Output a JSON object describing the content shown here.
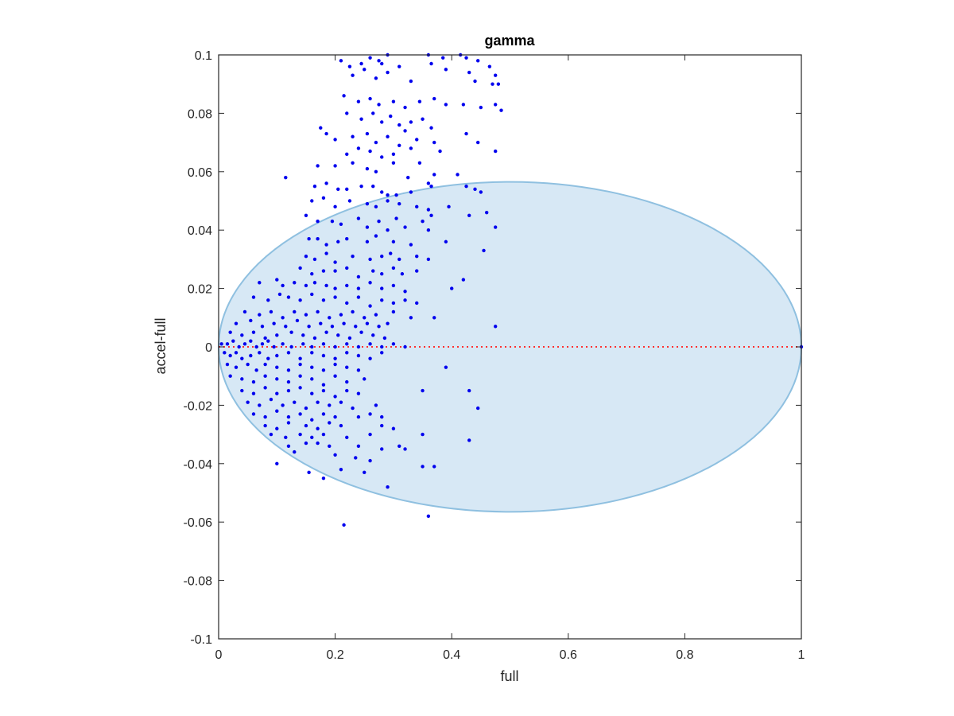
{
  "chart_data": {
    "type": "scatter",
    "title": "gamma",
    "xlabel": "full",
    "ylabel": "accel-full",
    "xlim": [
      0,
      1
    ],
    "ylim": [
      -0.1,
      0.1
    ],
    "xticks": [
      0,
      0.2,
      0.4,
      0.6,
      0.8,
      1
    ],
    "xtick_labels": [
      "0",
      "0.2",
      "0.4",
      "0.6",
      "0.8",
      "1"
    ],
    "yticks": [
      -0.1,
      -0.08,
      -0.06,
      -0.04,
      -0.02,
      0,
      0.02,
      0.04,
      0.06,
      0.08,
      0.1
    ],
    "ytick_labels": [
      "-0.1",
      "-0.08",
      "-0.06",
      "-0.04",
      "-0.02",
      "0",
      "0.02",
      "0.04",
      "0.06",
      "0.08",
      "0.1"
    ],
    "grid": false,
    "colors": {
      "points": "#0000ee",
      "zero_line": "#ff3030",
      "ellipse_fill": "#d7e8f5",
      "ellipse_stroke": "#8fc0e0",
      "axes": "#262626"
    },
    "reference_line": {
      "y": 0,
      "style": "dotted"
    },
    "ellipse": {
      "cx": 0.5,
      "cy": 0,
      "rx": 0.5,
      "ry": 0.0565
    },
    "points": [
      [
        0.21,
        0.098
      ],
      [
        0.225,
        0.096
      ],
      [
        0.245,
        0.097
      ],
      [
        0.26,
        0.099
      ],
      [
        0.275,
        0.098
      ],
      [
        0.29,
        0.1
      ],
      [
        0.28,
        0.097
      ],
      [
        0.36,
        0.1
      ],
      [
        0.385,
        0.099
      ],
      [
        0.415,
        0.1
      ],
      [
        0.425,
        0.099
      ],
      [
        0.445,
        0.098
      ],
      [
        0.23,
        0.093
      ],
      [
        0.25,
        0.095
      ],
      [
        0.27,
        0.092
      ],
      [
        0.29,
        0.094
      ],
      [
        0.31,
        0.096
      ],
      [
        0.33,
        0.091
      ],
      [
        0.365,
        0.097
      ],
      [
        0.39,
        0.095
      ],
      [
        0.43,
        0.094
      ],
      [
        0.465,
        0.096
      ],
      [
        0.475,
        0.093
      ],
      [
        0.48,
        0.09
      ],
      [
        0.47,
        0.09
      ],
      [
        0.44,
        0.091
      ],
      [
        0.215,
        0.086
      ],
      [
        0.24,
        0.084
      ],
      [
        0.26,
        0.085
      ],
      [
        0.275,
        0.083
      ],
      [
        0.3,
        0.084
      ],
      [
        0.32,
        0.082
      ],
      [
        0.345,
        0.084
      ],
      [
        0.37,
        0.085
      ],
      [
        0.39,
        0.083
      ],
      [
        0.42,
        0.083
      ],
      [
        0.45,
        0.082
      ],
      [
        0.475,
        0.083
      ],
      [
        0.485,
        0.081
      ],
      [
        0.22,
        0.08
      ],
      [
        0.245,
        0.078
      ],
      [
        0.265,
        0.08
      ],
      [
        0.28,
        0.077
      ],
      [
        0.295,
        0.079
      ],
      [
        0.31,
        0.076
      ],
      [
        0.33,
        0.077
      ],
      [
        0.35,
        0.078
      ],
      [
        0.365,
        0.075
      ],
      [
        0.175,
        0.075
      ],
      [
        0.185,
        0.073
      ],
      [
        0.2,
        0.071
      ],
      [
        0.23,
        0.072
      ],
      [
        0.255,
        0.073
      ],
      [
        0.27,
        0.07
      ],
      [
        0.29,
        0.072
      ],
      [
        0.31,
        0.069
      ],
      [
        0.32,
        0.074
      ],
      [
        0.34,
        0.071
      ],
      [
        0.37,
        0.07
      ],
      [
        0.425,
        0.073
      ],
      [
        0.445,
        0.07
      ],
      [
        0.22,
        0.066
      ],
      [
        0.24,
        0.068
      ],
      [
        0.26,
        0.067
      ],
      [
        0.28,
        0.065
      ],
      [
        0.3,
        0.066
      ],
      [
        0.33,
        0.068
      ],
      [
        0.345,
        0.063
      ],
      [
        0.38,
        0.067
      ],
      [
        0.475,
        0.067
      ],
      [
        0.115,
        0.058
      ],
      [
        0.17,
        0.062
      ],
      [
        0.2,
        0.062
      ],
      [
        0.23,
        0.063
      ],
      [
        0.255,
        0.061
      ],
      [
        0.27,
        0.06
      ],
      [
        0.3,
        0.063
      ],
      [
        0.325,
        0.058
      ],
      [
        0.37,
        0.059
      ],
      [
        0.41,
        0.059
      ],
      [
        0.165,
        0.055
      ],
      [
        0.185,
        0.056
      ],
      [
        0.205,
        0.054
      ],
      [
        0.22,
        0.054
      ],
      [
        0.245,
        0.055
      ],
      [
        0.265,
        0.055
      ],
      [
        0.28,
        0.053
      ],
      [
        0.29,
        0.052
      ],
      [
        0.305,
        0.052
      ],
      [
        0.33,
        0.053
      ],
      [
        0.36,
        0.056
      ],
      [
        0.365,
        0.055
      ],
      [
        0.425,
        0.055
      ],
      [
        0.44,
        0.054
      ],
      [
        0.45,
        0.053
      ],
      [
        0.16,
        0.05
      ],
      [
        0.18,
        0.051
      ],
      [
        0.2,
        0.048
      ],
      [
        0.225,
        0.05
      ],
      [
        0.255,
        0.049
      ],
      [
        0.27,
        0.048
      ],
      [
        0.29,
        0.05
      ],
      [
        0.31,
        0.049
      ],
      [
        0.34,
        0.048
      ],
      [
        0.36,
        0.047
      ],
      [
        0.395,
        0.048
      ],
      [
        0.43,
        0.045
      ],
      [
        0.46,
        0.046
      ],
      [
        0.15,
        0.045
      ],
      [
        0.17,
        0.043
      ],
      [
        0.195,
        0.043
      ],
      [
        0.21,
        0.042
      ],
      [
        0.24,
        0.044
      ],
      [
        0.255,
        0.041
      ],
      [
        0.275,
        0.043
      ],
      [
        0.29,
        0.04
      ],
      [
        0.305,
        0.044
      ],
      [
        0.32,
        0.041
      ],
      [
        0.35,
        0.043
      ],
      [
        0.365,
        0.045
      ],
      [
        0.475,
        0.041
      ],
      [
        0.155,
        0.037
      ],
      [
        0.17,
        0.037
      ],
      [
        0.185,
        0.035
      ],
      [
        0.205,
        0.036
      ],
      [
        0.22,
        0.037
      ],
      [
        0.255,
        0.036
      ],
      [
        0.27,
        0.038
      ],
      [
        0.3,
        0.036
      ],
      [
        0.33,
        0.035
      ],
      [
        0.36,
        0.04
      ],
      [
        0.39,
        0.036
      ],
      [
        0.455,
        0.033
      ],
      [
        0.15,
        0.031
      ],
      [
        0.165,
        0.03
      ],
      [
        0.185,
        0.032
      ],
      [
        0.2,
        0.029
      ],
      [
        0.23,
        0.031
      ],
      [
        0.26,
        0.03
      ],
      [
        0.28,
        0.031
      ],
      [
        0.295,
        0.032
      ],
      [
        0.31,
        0.03
      ],
      [
        0.34,
        0.031
      ],
      [
        0.36,
        0.03
      ],
      [
        0.14,
        0.027
      ],
      [
        0.16,
        0.025
      ],
      [
        0.18,
        0.026
      ],
      [
        0.2,
        0.026
      ],
      [
        0.22,
        0.027
      ],
      [
        0.24,
        0.024
      ],
      [
        0.265,
        0.026
      ],
      [
        0.28,
        0.025
      ],
      [
        0.3,
        0.027
      ],
      [
        0.315,
        0.025
      ],
      [
        0.34,
        0.026
      ],
      [
        0.07,
        0.022
      ],
      [
        0.1,
        0.023
      ],
      [
        0.11,
        0.021
      ],
      [
        0.13,
        0.022
      ],
      [
        0.15,
        0.021
      ],
      [
        0.165,
        0.022
      ],
      [
        0.185,
        0.021
      ],
      [
        0.2,
        0.02
      ],
      [
        0.22,
        0.021
      ],
      [
        0.24,
        0.02
      ],
      [
        0.26,
        0.022
      ],
      [
        0.28,
        0.02
      ],
      [
        0.3,
        0.021
      ],
      [
        0.32,
        0.019
      ],
      [
        0.4,
        0.02
      ],
      [
        0.42,
        0.023
      ],
      [
        0.06,
        0.017
      ],
      [
        0.085,
        0.016
      ],
      [
        0.105,
        0.018
      ],
      [
        0.12,
        0.017
      ],
      [
        0.14,
        0.016
      ],
      [
        0.16,
        0.018
      ],
      [
        0.18,
        0.016
      ],
      [
        0.2,
        0.017
      ],
      [
        0.22,
        0.015
      ],
      [
        0.24,
        0.017
      ],
      [
        0.26,
        0.014
      ],
      [
        0.28,
        0.016
      ],
      [
        0.3,
        0.015
      ],
      [
        0.32,
        0.016
      ],
      [
        0.34,
        0.015
      ],
      [
        0.045,
        0.012
      ],
      [
        0.07,
        0.011
      ],
      [
        0.09,
        0.012
      ],
      [
        0.11,
        0.01
      ],
      [
        0.13,
        0.012
      ],
      [
        0.15,
        0.011
      ],
      [
        0.17,
        0.012
      ],
      [
        0.19,
        0.01
      ],
      [
        0.21,
        0.011
      ],
      [
        0.23,
        0.012
      ],
      [
        0.25,
        0.01
      ],
      [
        0.27,
        0.011
      ],
      [
        0.3,
        0.012
      ],
      [
        0.33,
        0.01
      ],
      [
        0.37,
        0.01
      ],
      [
        0.03,
        0.008
      ],
      [
        0.055,
        0.009
      ],
      [
        0.075,
        0.007
      ],
      [
        0.095,
        0.008
      ],
      [
        0.115,
        0.007
      ],
      [
        0.135,
        0.009
      ],
      [
        0.155,
        0.007
      ],
      [
        0.175,
        0.008
      ],
      [
        0.195,
        0.007
      ],
      [
        0.215,
        0.008
      ],
      [
        0.235,
        0.007
      ],
      [
        0.255,
        0.008
      ],
      [
        0.275,
        0.007
      ],
      [
        0.29,
        0.008
      ],
      [
        0.475,
        0.007
      ],
      [
        0.02,
        0.005
      ],
      [
        0.04,
        0.004
      ],
      [
        0.06,
        0.005
      ],
      [
        0.08,
        0.003
      ],
      [
        0.1,
        0.004
      ],
      [
        0.125,
        0.005
      ],
      [
        0.145,
        0.004
      ],
      [
        0.165,
        0.003
      ],
      [
        0.185,
        0.005
      ],
      [
        0.205,
        0.004
      ],
      [
        0.225,
        0.003
      ],
      [
        0.245,
        0.005
      ],
      [
        0.265,
        0.004
      ],
      [
        0.285,
        0.003
      ],
      [
        0.005,
        0.001
      ],
      [
        0.015,
        0.001
      ],
      [
        0.025,
        0.002
      ],
      [
        0.035,
        0.0
      ],
      [
        0.045,
        0.001
      ],
      [
        0.055,
        0.002
      ],
      [
        0.065,
        0.0
      ],
      [
        0.075,
        0.001
      ],
      [
        0.085,
        0.002
      ],
      [
        0.095,
        0.0
      ],
      [
        0.11,
        0.001
      ],
      [
        0.125,
        0.0
      ],
      [
        0.145,
        0.001
      ],
      [
        0.16,
        0.0
      ],
      [
        0.18,
        0.001
      ],
      [
        0.2,
        0.0
      ],
      [
        0.22,
        0.001
      ],
      [
        0.24,
        0.0
      ],
      [
        0.26,
        0.001
      ],
      [
        0.28,
        0.0
      ],
      [
        0.3,
        0.001
      ],
      [
        0.32,
        0.0
      ],
      [
        1.0,
        0.0
      ],
      [
        0.01,
        -0.002
      ],
      [
        0.02,
        -0.003
      ],
      [
        0.03,
        -0.002
      ],
      [
        0.04,
        -0.004
      ],
      [
        0.055,
        -0.003
      ],
      [
        0.07,
        -0.002
      ],
      [
        0.085,
        -0.004
      ],
      [
        0.1,
        -0.003
      ],
      [
        0.12,
        -0.002
      ],
      [
        0.14,
        -0.004
      ],
      [
        0.16,
        -0.002
      ],
      [
        0.18,
        -0.003
      ],
      [
        0.2,
        -0.004
      ],
      [
        0.22,
        -0.002
      ],
      [
        0.24,
        -0.003
      ],
      [
        0.26,
        -0.004
      ],
      [
        0.28,
        -0.002
      ],
      [
        0.015,
        -0.006
      ],
      [
        0.03,
        -0.007
      ],
      [
        0.05,
        -0.006
      ],
      [
        0.065,
        -0.008
      ],
      [
        0.08,
        -0.006
      ],
      [
        0.1,
        -0.007
      ],
      [
        0.12,
        -0.008
      ],
      [
        0.14,
        -0.006
      ],
      [
        0.16,
        -0.007
      ],
      [
        0.18,
        -0.008
      ],
      [
        0.2,
        -0.006
      ],
      [
        0.22,
        -0.007
      ],
      [
        0.24,
        -0.008
      ],
      [
        0.39,
        -0.007
      ],
      [
        0.02,
        -0.01
      ],
      [
        0.04,
        -0.011
      ],
      [
        0.06,
        -0.012
      ],
      [
        0.08,
        -0.01
      ],
      [
        0.1,
        -0.011
      ],
      [
        0.12,
        -0.012
      ],
      [
        0.14,
        -0.01
      ],
      [
        0.16,
        -0.011
      ],
      [
        0.18,
        -0.013
      ],
      [
        0.2,
        -0.01
      ],
      [
        0.22,
        -0.012
      ],
      [
        0.25,
        -0.011
      ],
      [
        0.04,
        -0.015
      ],
      [
        0.06,
        -0.016
      ],
      [
        0.08,
        -0.014
      ],
      [
        0.1,
        -0.016
      ],
      [
        0.12,
        -0.015
      ],
      [
        0.14,
        -0.014
      ],
      [
        0.16,
        -0.016
      ],
      [
        0.18,
        -0.015
      ],
      [
        0.2,
        -0.017
      ],
      [
        0.22,
        -0.015
      ],
      [
        0.24,
        -0.016
      ],
      [
        0.35,
        -0.015
      ],
      [
        0.43,
        -0.015
      ],
      [
        0.05,
        -0.019
      ],
      [
        0.07,
        -0.02
      ],
      [
        0.09,
        -0.018
      ],
      [
        0.11,
        -0.02
      ],
      [
        0.13,
        -0.019
      ],
      [
        0.15,
        -0.021
      ],
      [
        0.17,
        -0.019
      ],
      [
        0.19,
        -0.02
      ],
      [
        0.21,
        -0.019
      ],
      [
        0.23,
        -0.021
      ],
      [
        0.27,
        -0.02
      ],
      [
        0.445,
        -0.021
      ],
      [
        0.06,
        -0.023
      ],
      [
        0.08,
        -0.024
      ],
      [
        0.1,
        -0.022
      ],
      [
        0.12,
        -0.024
      ],
      [
        0.14,
        -0.023
      ],
      [
        0.16,
        -0.025
      ],
      [
        0.18,
        -0.023
      ],
      [
        0.2,
        -0.024
      ],
      [
        0.24,
        -0.024
      ],
      [
        0.26,
        -0.023
      ],
      [
        0.28,
        -0.024
      ],
      [
        0.08,
        -0.027
      ],
      [
        0.1,
        -0.028
      ],
      [
        0.12,
        -0.026
      ],
      [
        0.15,
        -0.027
      ],
      [
        0.17,
        -0.028
      ],
      [
        0.19,
        -0.026
      ],
      [
        0.21,
        -0.027
      ],
      [
        0.28,
        -0.027
      ],
      [
        0.3,
        -0.028
      ],
      [
        0.09,
        -0.03
      ],
      [
        0.115,
        -0.031
      ],
      [
        0.14,
        -0.03
      ],
      [
        0.16,
        -0.031
      ],
      [
        0.18,
        -0.03
      ],
      [
        0.22,
        -0.031
      ],
      [
        0.26,
        -0.03
      ],
      [
        0.35,
        -0.03
      ],
      [
        0.43,
        -0.032
      ],
      [
        0.12,
        -0.034
      ],
      [
        0.15,
        -0.033
      ],
      [
        0.17,
        -0.033
      ],
      [
        0.19,
        -0.034
      ],
      [
        0.24,
        -0.034
      ],
      [
        0.28,
        -0.035
      ],
      [
        0.31,
        -0.034
      ],
      [
        0.32,
        -0.035
      ],
      [
        0.1,
        -0.04
      ],
      [
        0.13,
        -0.036
      ],
      [
        0.2,
        -0.037
      ],
      [
        0.235,
        -0.038
      ],
      [
        0.26,
        -0.039
      ],
      [
        0.35,
        -0.041
      ],
      [
        0.37,
        -0.041
      ],
      [
        0.155,
        -0.043
      ],
      [
        0.18,
        -0.045
      ],
      [
        0.21,
        -0.042
      ],
      [
        0.25,
        -0.043
      ],
      [
        0.29,
        -0.048
      ],
      [
        0.36,
        -0.058
      ],
      [
        0.215,
        -0.061
      ]
    ]
  }
}
